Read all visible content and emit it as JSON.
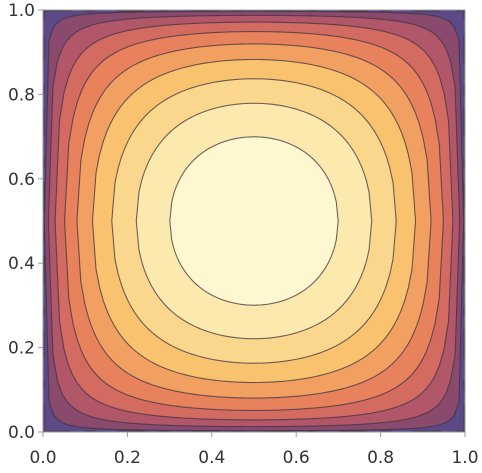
{
  "chart_data": {
    "type": "contour",
    "title": "",
    "xlabel": "",
    "ylabel": "",
    "xlim": [
      0,
      1
    ],
    "ylim": [
      0,
      1
    ],
    "x_ticks": [
      "0.0",
      "0.2",
      "0.4",
      "0.6",
      "0.8",
      "1.0"
    ],
    "y_ticks": [
      "0.0",
      "0.2",
      "0.4",
      "0.6",
      "0.8",
      "1.0"
    ],
    "x_tick_values": [
      0,
      0.2,
      0.4,
      0.6,
      0.8,
      1.0
    ],
    "y_tick_values": [
      0,
      0.2,
      0.4,
      0.6,
      0.8,
      1.0
    ],
    "grid": false,
    "legend": "none",
    "surface": "z = (sin(pi x) sin(pi y))^(1/2), peak at (0.5, 0.5)",
    "contour_levels": [
      0.1,
      0.2,
      0.3,
      0.4,
      0.5,
      0.6,
      0.7,
      0.8,
      0.9
    ],
    "colors": [
      "#5b4a86",
      "#8a4a6e",
      "#b2566a",
      "#d36b60",
      "#e8825c",
      "#f2a062",
      "#f8c26f",
      "#fbd78d",
      "#fce9ae",
      "#fff7cf"
    ],
    "contour_line_color": "#3d3340"
  }
}
